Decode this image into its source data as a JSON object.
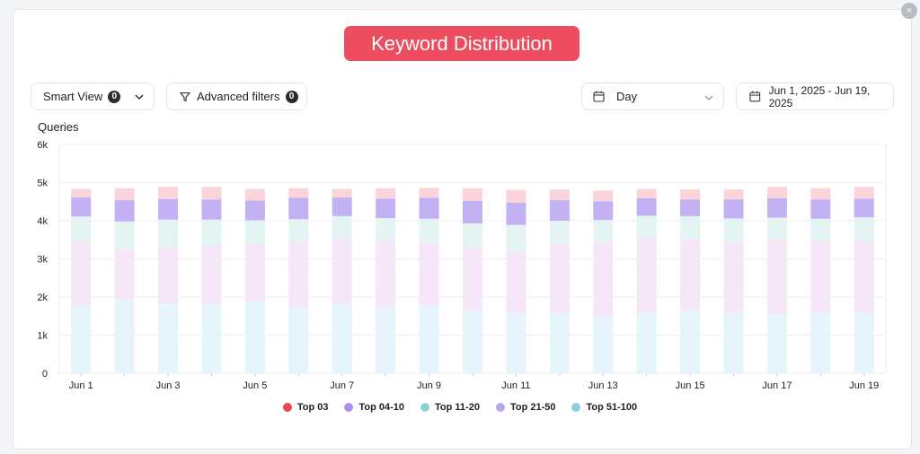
{
  "header": {
    "title": "Keyword Distribution",
    "close_label": "×"
  },
  "controls": {
    "smart_view": {
      "label": "Smart View",
      "count": "0"
    },
    "advanced_filters": {
      "label": "Advanced filters",
      "count": "0"
    },
    "granularity": {
      "value": "Day"
    },
    "date_range": {
      "value": "Jun 1, 2025 - Jun 19, 2025"
    }
  },
  "colors": {
    "accent": "#ee4d5f",
    "top03": "#e8475a",
    "top0410": "#a98ff0",
    "top1120": "#8fd1d4",
    "top2150": "#b9a6e8",
    "top51100": "#8ccfdc",
    "fill_top03": "#fbd3da",
    "fill_top0410": "#c3b2f3",
    "fill_top1120": "#e3f4f2",
    "fill_top2150": "#f5e7f7",
    "fill_top51100": "#e6f4fb"
  },
  "chart_data": {
    "type": "bar",
    "stacked": true,
    "title": "Keyword Distribution",
    "ylabel": "Queries",
    "ylim": [
      0,
      6000
    ],
    "yticks": [
      0,
      1000,
      2000,
      3000,
      4000,
      5000,
      6000
    ],
    "ytick_labels": [
      "0",
      "1k",
      "2k",
      "3k",
      "4k",
      "5k",
      "6k"
    ],
    "categories": [
      "Jun 1",
      "Jun 2",
      "Jun 3",
      "Jun 4",
      "Jun 5",
      "Jun 6",
      "Jun 7",
      "Jun 8",
      "Jun 9",
      "Jun 10",
      "Jun 11",
      "Jun 12",
      "Jun 13",
      "Jun 14",
      "Jun 15",
      "Jun 16",
      "Jun 17",
      "Jun 18",
      "Jun 19"
    ],
    "xtick_labels": [
      "Jun 1",
      "",
      "Jun 3",
      "",
      "Jun 5",
      "",
      "Jun 7",
      "",
      "Jun 9",
      "",
      "Jun 11",
      "",
      "Jun 13",
      "",
      "Jun 15",
      "",
      "Jun 17",
      "",
      "Jun 19"
    ],
    "grid": true,
    "legend_position": "bottom",
    "series": [
      {
        "name": "Top 51-100",
        "values": [
          1770,
          1930,
          1830,
          1820,
          1880,
          1730,
          1820,
          1720,
          1790,
          1630,
          1570,
          1570,
          1500,
          1590,
          1650,
          1560,
          1550,
          1570,
          1570
        ]
      },
      {
        "name": "Top 21-50",
        "values": [
          1690,
          1330,
          1480,
          1520,
          1520,
          1720,
          1700,
          1740,
          1630,
          1650,
          1600,
          1840,
          1950,
          1950,
          1870,
          1880,
          1950,
          1900,
          1900
        ]
      },
      {
        "name": "Top 11-20",
        "values": [
          650,
          720,
          720,
          690,
          610,
          590,
          600,
          610,
          630,
          650,
          720,
          590,
          570,
          590,
          600,
          620,
          580,
          580,
          620
        ]
      },
      {
        "name": "Top 04-10",
        "values": [
          500,
          560,
          540,
          530,
          520,
          560,
          490,
          510,
          550,
          590,
          580,
          540,
          490,
          460,
          440,
          500,
          510,
          510,
          490
        ]
      },
      {
        "name": "Top 03",
        "values": [
          230,
          310,
          320,
          330,
          300,
          250,
          220,
          270,
          260,
          330,
          340,
          280,
          280,
          240,
          260,
          260,
          300,
          290,
          310
        ]
      }
    ],
    "legend_order": [
      "Top 03",
      "Top 04-10",
      "Top 11-20",
      "Top 21-50",
      "Top 51-100"
    ]
  }
}
